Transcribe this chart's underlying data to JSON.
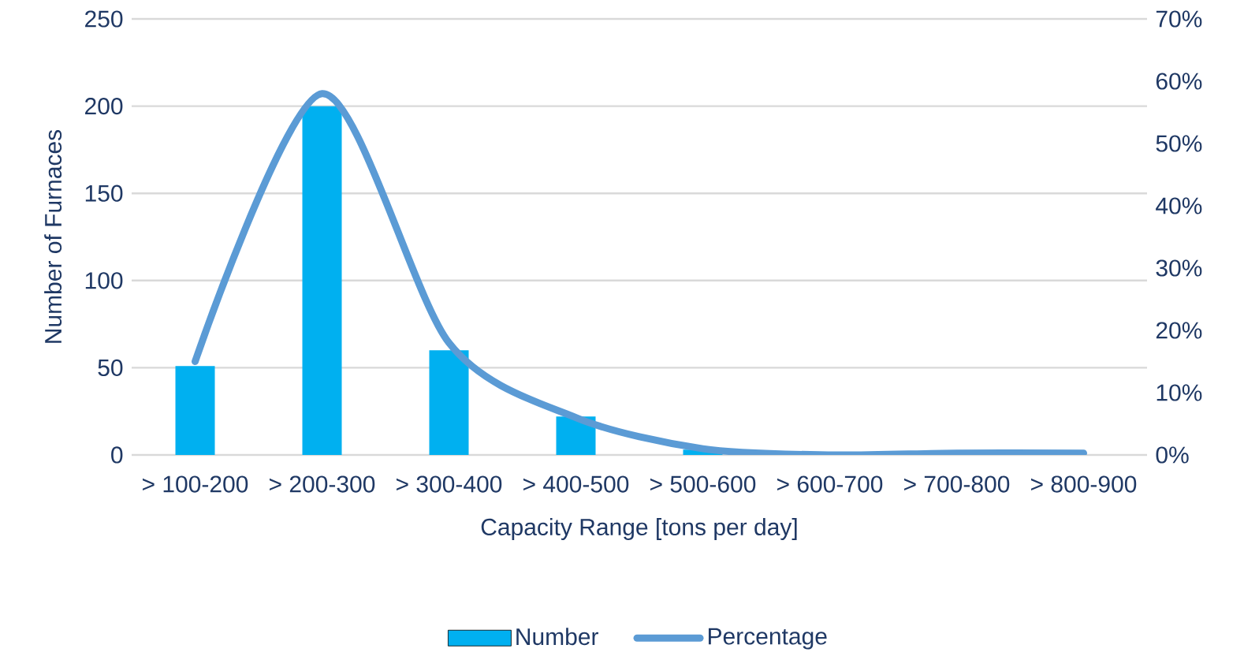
{
  "chart_data": {
    "type": "bar",
    "xlabel": "Capacity Range [tons per day]",
    "ylabel": "Number of Furnaces",
    "categories": [
      "> 100-200",
      "> 200-300",
      "> 300-400",
      "> 400-500",
      "> 500-600",
      "> 600-700",
      "> 700-800",
      "> 800-900"
    ],
    "series": [
      {
        "name": "Number",
        "color": "#00b0f0",
        "values": [
          51,
          200,
          60,
          22,
          3,
          null,
          null,
          null
        ]
      },
      {
        "name": "Percentage",
        "type": "line",
        "axis": "y2",
        "color": "#5b9bd5",
        "values": [
          15,
          58,
          18,
          6,
          1,
          0,
          0.3,
          0.3
        ]
      }
    ],
    "ylim": [
      0,
      250
    ],
    "yticks": [
      0,
      50,
      100,
      150,
      200,
      250
    ],
    "y2lim": [
      0,
      70
    ],
    "y2ticks": [
      {
        "value": 0,
        "label": "0%"
      },
      {
        "value": 10,
        "label": "10%"
      },
      {
        "value": 20,
        "label": "20%"
      },
      {
        "value": 30,
        "label": "30%"
      },
      {
        "value": 40,
        "label": "40%"
      },
      {
        "value": 50,
        "label": "50%"
      },
      {
        "value": 60,
        "label": "60%"
      },
      {
        "value": 70,
        "label": "70%"
      }
    ],
    "grid": "y",
    "legend": "bottom"
  }
}
